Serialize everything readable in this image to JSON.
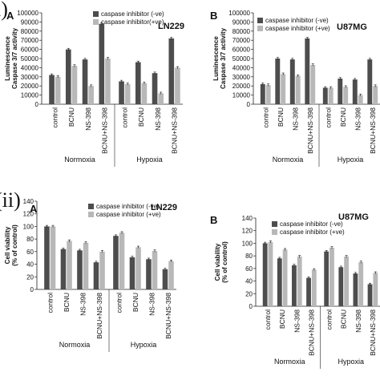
{
  "labels": {
    "section_i": "i)",
    "section_ii": "(ii)"
  },
  "colors": {
    "series_neg": "#4d4d4d",
    "series_pos": "#b8b8b8",
    "axis": "#222222"
  },
  "chart_data": [
    {
      "type": "bar",
      "panel": "A",
      "title": "LN229",
      "ylabel": [
        "Luminescence",
        "Caspase 3/7 activity"
      ],
      "ylim": [
        0,
        100000
      ],
      "yticks": [
        0,
        10000,
        20000,
        30000,
        40000,
        50000,
        60000,
        70000,
        80000,
        90000,
        100000
      ],
      "categories": [
        "control",
        "BCNU",
        "NS-398",
        "BCNU+NS-398",
        "control",
        "BCNU",
        "NS-398",
        "BCNU+NS-398"
      ],
      "groups": [
        {
          "label": "Normoxia",
          "count": 4
        },
        {
          "label": "Hypoxia",
          "count": 4
        }
      ],
      "legend_position": "top-right",
      "series": [
        {
          "name": "caspase inhibitor (-ve)",
          "values": [
            32000,
            60000,
            49000,
            88000,
            25000,
            46000,
            34000,
            72000
          ]
        },
        {
          "name": "caspase inhibitor(+ve)",
          "values": [
            30000,
            42000,
            20000,
            50000,
            22000,
            23000,
            12000,
            40000
          ]
        }
      ]
    },
    {
      "type": "bar",
      "panel": "B",
      "title": "U87MG",
      "ylabel": [
        "Luminescence",
        "Caspase 3/7 activity"
      ],
      "ylim": [
        0,
        100000
      ],
      "yticks": [
        0,
        10000,
        20000,
        30000,
        40000,
        50000,
        60000,
        70000,
        80000,
        90000,
        100000
      ],
      "categories": [
        "control",
        "BCNU",
        "NS-398",
        "BCNU+NS-398",
        "control",
        "BCNU",
        "NS-398",
        "BCNU+NS-398"
      ],
      "groups": [
        {
          "label": "Normoxia",
          "count": 4
        },
        {
          "label": "Hypoxia",
          "count": 4
        }
      ],
      "legend_position": "top-right",
      "series": [
        {
          "name": "caspase inhibitor (-ve)",
          "values": [
            22000,
            50000,
            49000,
            72000,
            18000,
            28000,
            27000,
            49000
          ]
        },
        {
          "name": "caspase inhibitor (+ve)",
          "values": [
            21000,
            33000,
            31000,
            43000,
            18000,
            19000,
            10000,
            20000
          ]
        }
      ]
    },
    {
      "type": "bar",
      "panel": "A",
      "title": "LN229",
      "ylabel": [
        "Cell viability",
        "(% of control)"
      ],
      "ylim": [
        0,
        140
      ],
      "yticks": [
        0,
        20,
        40,
        60,
        80,
        100,
        120,
        140
      ],
      "categories": [
        "control",
        "BCNU",
        "NS-398",
        "BCNU+NS-398",
        "control",
        "BCNU",
        "NS-398",
        "BCNU+NS-398"
      ],
      "groups": [
        {
          "label": "Normoxia",
          "count": 4
        },
        {
          "label": "Hypoxia",
          "count": 4
        }
      ],
      "legend_position": "top-right",
      "series": [
        {
          "name": "caspase inhibitor (-ve)",
          "values": [
            100,
            64,
            62,
            43,
            85,
            51,
            48,
            32
          ]
        },
        {
          "name": "caspase inhibitor (+ve)",
          "values": [
            100,
            77,
            74,
            60,
            90,
            67,
            61,
            45
          ]
        }
      ]
    },
    {
      "type": "bar",
      "panel": "B",
      "title": "U87MG",
      "ylabel": [
        "Cell viability",
        "(% of control)"
      ],
      "ylim": [
        0,
        140
      ],
      "yticks": [
        0,
        20,
        40,
        60,
        80,
        100,
        120,
        140
      ],
      "categories": [
        "control",
        "BCNU",
        "NS-398",
        "BCNU+NS-398",
        "control",
        "BCNU",
        "NS-398",
        "BCNU+NS-398"
      ],
      "groups": [
        {
          "label": "Normoxia",
          "count": 4
        },
        {
          "label": "Hypoxia",
          "count": 4
        }
      ],
      "legend_position": "top-right",
      "series": [
        {
          "name": "caspase inhibitor (-ve)",
          "values": [
            100,
            76,
            65,
            45,
            87,
            62,
            52,
            35
          ]
        },
        {
          "name": "caspase inhibitor (+ve)",
          "values": [
            102,
            90,
            79,
            58,
            93,
            79,
            70,
            53
          ]
        }
      ]
    }
  ]
}
